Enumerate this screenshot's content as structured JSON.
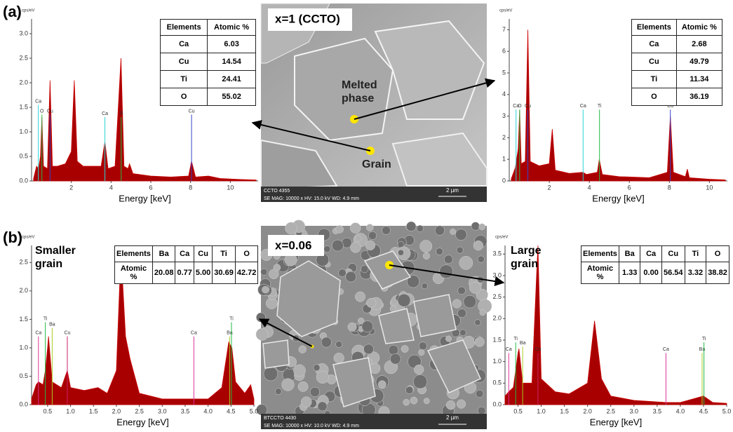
{
  "panels": [
    {
      "label": "(a)"
    },
    {
      "label": "(b)"
    }
  ],
  "images": [
    {
      "caption": "x=1 (CCTO)",
      "annotations": [
        "Melted phase",
        "Grain"
      ],
      "footer_id": "CCTO 4355",
      "footer_params": "SE MAG: 10000 x HV: 15.0 kV WD: 4.9 mm",
      "scale": "2 µm"
    },
    {
      "caption": "x=0.06",
      "annotations": [],
      "footer_id": "BTCCTO 4430",
      "footer_params": "SE MAG: 10000 x HV: 10.0 kV WD: 4.9 mm",
      "scale": "2 µm"
    }
  ],
  "chart_data": [
    {
      "type": "area",
      "y_label": "cps/eV",
      "x_label": "Energy [keV]",
      "x": [
        0.1,
        0.25,
        0.35,
        0.45,
        0.52,
        0.6,
        0.8,
        0.93,
        1.05,
        1.3,
        1.7,
        2.0,
        2.15,
        2.3,
        2.6,
        3.0,
        3.5,
        3.69,
        3.85,
        4.2,
        4.5,
        4.65,
        4.85,
        4.93,
        5.1,
        6.0,
        7.0,
        7.9,
        8.05,
        8.25,
        8.9,
        9.5,
        10.5,
        11.3
      ],
      "series": [
        {
          "color": "#a80000",
          "values": [
            0.05,
            0.3,
            0.25,
            0.5,
            1.3,
            0.3,
            0.25,
            2.05,
            0.3,
            0.3,
            0.35,
            0.6,
            2.05,
            0.4,
            0.3,
            0.3,
            0.3,
            0.8,
            0.25,
            0.3,
            2.5,
            0.3,
            0.25,
            0.35,
            0.15,
            0.1,
            0.08,
            0.1,
            0.4,
            0.08,
            0.1,
            0.05,
            0.03,
            0.02
          ]
        }
      ],
      "xlim": [
        0,
        11.4
      ],
      "ylim": [
        0,
        3.3
      ],
      "xticks": [
        2,
        4,
        6,
        8,
        10
      ],
      "yticks": [
        {
          "value": 0,
          "label": "0.0"
        },
        0.5,
        {
          "value": 1,
          "label": "1.0"
        },
        1.5,
        {
          "value": 2,
          "label": "2.0"
        },
        2.5,
        {
          "value": 3,
          "label": "3.0"
        }
      ],
      "element_lines": [
        {
          "label": "Ca",
          "energy": 0.34,
          "height": 1.55,
          "color": "#2ad4d4"
        },
        {
          "label": "O",
          "energy": 0.52,
          "height": 1.35,
          "color": "#22bb44"
        },
        {
          "label": "Cu",
          "energy": 0.93,
          "height": 1.35,
          "color": "#3344cc"
        },
        {
          "label": "Ca",
          "energy": 3.69,
          "height": 1.3,
          "color": "#2ad4d4"
        },
        {
          "label": "Ti",
          "energy": 4.51,
          "height": 1.3,
          "color": "#22bb44"
        },
        {
          "label": "Cu",
          "energy": 8.05,
          "height": 1.35,
          "color": "#3344cc"
        }
      ],
      "table": {
        "header": [
          "Elements",
          "Atomic %"
        ],
        "rows": [
          [
            "Ca",
            "6.03"
          ],
          [
            "Cu",
            "14.54"
          ],
          [
            "Ti",
            "24.41"
          ],
          [
            "O",
            "55.02"
          ]
        ]
      }
    },
    {
      "type": "area",
      "y_label": "cps/eV",
      "x_label": "Energy [keV]",
      "x": [
        0.1,
        0.3,
        0.45,
        0.52,
        0.6,
        0.8,
        0.93,
        1.05,
        1.5,
        2.0,
        2.15,
        2.3,
        3.0,
        3.69,
        3.85,
        4.4,
        4.5,
        4.65,
        5.5,
        7.0,
        7.9,
        8.05,
        8.2,
        8.8,
        8.9,
        9.0,
        10,
        10.8
      ],
      "series": [
        {
          "color": "#a80000",
          "values": [
            0.1,
            0.6,
            1.5,
            3.3,
            0.8,
            0.9,
            7.0,
            0.9,
            0.7,
            0.8,
            2.4,
            0.5,
            0.35,
            0.4,
            0.3,
            0.4,
            1.0,
            0.3,
            0.2,
            0.15,
            0.4,
            3.0,
            0.4,
            0.2,
            0.55,
            0.15,
            0.08,
            0.05
          ]
        }
      ],
      "xlim": [
        0,
        10.9
      ],
      "ylim": [
        0,
        7.5
      ],
      "xticks": [
        2,
        4,
        6,
        8,
        10
      ],
      "yticks": [
        0,
        1,
        2,
        3,
        4,
        5,
        6,
        7
      ],
      "element_lines": [
        {
          "label": "Ca",
          "energy": 0.34,
          "height": 3.3,
          "color": "#2ad4d4"
        },
        {
          "label": "O",
          "energy": 0.52,
          "height": 3.3,
          "color": "#22bb44"
        },
        {
          "label": "Cu",
          "energy": 0.93,
          "height": 3.3,
          "color": "#3344cc"
        },
        {
          "label": "Ca",
          "energy": 3.69,
          "height": 3.3,
          "color": "#2ad4d4"
        },
        {
          "label": "Ti",
          "energy": 4.51,
          "height": 3.3,
          "color": "#22bb44"
        },
        {
          "label": "Cu",
          "energy": 8.05,
          "height": 3.3,
          "color": "#3344cc"
        }
      ],
      "table": {
        "header": [
          "Elements",
          "Atomic %"
        ],
        "rows": [
          [
            "Ca",
            "2.68"
          ],
          [
            "Cu",
            "49.79"
          ],
          [
            "Ti",
            "11.34"
          ],
          [
            "O",
            "36.19"
          ]
        ]
      }
    },
    {
      "type": "area",
      "y_label": "cps/eV",
      "x_label": "Energy [keV]",
      "annotation": "Smaller grain",
      "x": [
        0.15,
        0.25,
        0.3,
        0.4,
        0.45,
        0.5,
        0.52,
        0.6,
        0.8,
        0.93,
        1.0,
        1.3,
        1.6,
        1.8,
        2.0,
        2.1,
        2.2,
        2.3,
        2.5,
        3.0,
        3.69,
        4.0,
        4.3,
        4.45,
        4.52,
        4.6,
        4.8,
        4.93,
        5.0
      ],
      "series": [
        {
          "color": "#a80000",
          "values": [
            0.1,
            0.35,
            0.4,
            0.35,
            0.6,
            1.0,
            1.2,
            0.4,
            0.3,
            0.6,
            0.3,
            0.25,
            0.3,
            0.2,
            0.6,
            2.7,
            1.2,
            0.8,
            0.2,
            0.1,
            0.1,
            0.1,
            0.3,
            1.1,
            1.0,
            0.4,
            0.2,
            0.35,
            0.1
          ]
        }
      ],
      "xlim": [
        0.15,
        5.0
      ],
      "ylim": [
        0,
        2.8
      ],
      "xticks": [
        0.5,
        {
          "value": 1,
          "label": "1.0"
        },
        1.5,
        {
          "value": 2,
          "label": "2.0"
        },
        2.5,
        {
          "value": 3,
          "label": "3.0"
        },
        3.5,
        {
          "value": 4,
          "label": "4.0"
        },
        4.5,
        {
          "value": 5,
          "label": "5.0"
        }
      ],
      "yticks": [
        {
          "value": 0,
          "label": "0.0"
        },
        0.5,
        {
          "value": 1,
          "label": "1.0"
        },
        1.5,
        {
          "value": 2,
          "label": "2.0"
        },
        2.5
      ],
      "element_lines": [
        {
          "label": "Ca",
          "energy": 0.3,
          "height": 1.2,
          "color": "#dd3399"
        },
        {
          "label": "Ti",
          "energy": 0.45,
          "height": 1.45,
          "color": "#22bb44"
        },
        {
          "label": "Ba",
          "energy": 0.6,
          "height": 1.35,
          "color": "#aacc22"
        },
        {
          "label": "Cu",
          "energy": 0.93,
          "height": 1.2,
          "color": "#cc2266"
        },
        {
          "label": "Ca",
          "energy": 3.69,
          "height": 1.2,
          "color": "#dd3399"
        },
        {
          "label": "Ba",
          "energy": 4.47,
          "height": 1.2,
          "color": "#aacc22"
        },
        {
          "label": "Ti",
          "energy": 4.51,
          "height": 1.45,
          "color": "#22bb44"
        }
      ],
      "table": {
        "header": [
          "Elements",
          "Ba",
          "Ca",
          "Cu",
          "Ti",
          "O"
        ],
        "rows": [
          [
            "Atomic %",
            "20.08",
            "0.77",
            "5.00",
            "30.69",
            "42.72"
          ]
        ]
      }
    },
    {
      "type": "area",
      "y_label": "cps/eV",
      "x_label": "Energy [keV]",
      "annotation": "Large grain",
      "x": [
        0.22,
        0.3,
        0.4,
        0.5,
        0.52,
        0.6,
        0.8,
        0.9,
        0.93,
        1.0,
        1.3,
        1.6,
        2.0,
        2.15,
        2.3,
        2.5,
        3.0,
        3.69,
        4.0,
        4.5,
        4.7,
        5.0
      ],
      "series": [
        {
          "color": "#a80000",
          "values": [
            0.2,
            0.3,
            0.4,
            1.2,
            1.3,
            0.5,
            0.5,
            3.0,
            3.7,
            0.6,
            0.3,
            0.25,
            0.5,
            1.95,
            0.6,
            0.2,
            0.1,
            0.05,
            0.05,
            0.2,
            0.05,
            0.03
          ]
        }
      ],
      "xlim": [
        0.22,
        5.0
      ],
      "ylim": [
        0,
        3.7
      ],
      "xticks": [
        0.5,
        {
          "value": 1,
          "label": "1.0"
        },
        1.5,
        {
          "value": 2,
          "label": "2.0"
        },
        2.5,
        {
          "value": 3,
          "label": "3.0"
        },
        3.5,
        {
          "value": 4,
          "label": "4.0"
        },
        4.5,
        {
          "value": 5,
          "label": "5.0"
        }
      ],
      "yticks": [
        {
          "value": 0,
          "label": "0.0"
        },
        0.5,
        {
          "value": 1,
          "label": "1.0"
        },
        1.5,
        {
          "value": 2,
          "label": "2.0"
        },
        2.5,
        {
          "value": 3,
          "label": "3.0"
        },
        3.5
      ],
      "element_lines": [
        {
          "label": "Ca",
          "energy": 0.3,
          "height": 1.2,
          "color": "#dd3399"
        },
        {
          "label": "Ti",
          "energy": 0.45,
          "height": 1.45,
          "color": "#22bb44"
        },
        {
          "label": "Ba",
          "energy": 0.6,
          "height": 1.35,
          "color": "#aacc22"
        },
        {
          "label": "Cu",
          "energy": 0.93,
          "height": 1.2,
          "color": "#cc2266"
        },
        {
          "label": "Ca",
          "energy": 3.69,
          "height": 1.2,
          "color": "#dd3399"
        },
        {
          "label": "Ba",
          "energy": 4.47,
          "height": 1.2,
          "color": "#aacc22"
        },
        {
          "label": "Ti",
          "energy": 4.51,
          "height": 1.45,
          "color": "#22bb44"
        }
      ],
      "table": {
        "header": [
          "Elements",
          "Ba",
          "Ca",
          "Cu",
          "Ti",
          "O"
        ],
        "rows": [
          [
            "Atomic %",
            "1.33",
            "0.00",
            "56.54",
            "3.32",
            "38.82"
          ]
        ]
      }
    }
  ]
}
